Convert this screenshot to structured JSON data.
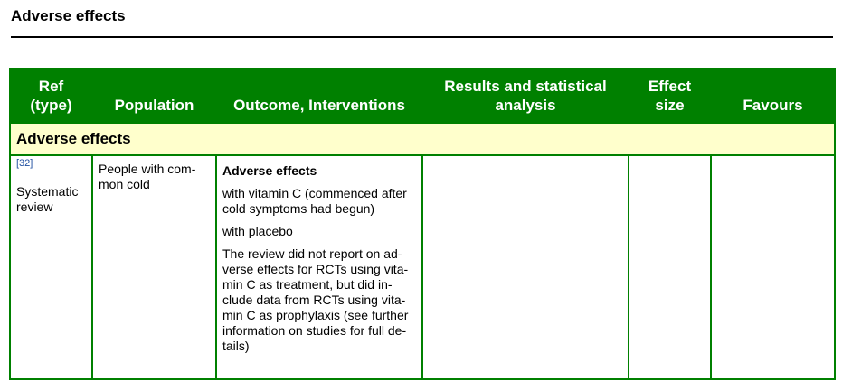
{
  "section": {
    "title": "Adverse effects"
  },
  "table": {
    "headers": [
      "Ref\n(type)",
      "Population",
      "Outcome, Interventions",
      "Results and statistical analysis",
      "Effect\nsize",
      "Favours"
    ],
    "subheading": "Adverse effects",
    "row": {
      "ref": "[32]",
      "type_line1": "Systematic",
      "type_line2": "review",
      "population": "People with com-mon cold",
      "outcome_heading": "Adverse effects",
      "outcome_paragraphs": [
        "with vitamin C (commenced after cold symptoms had begun)",
        "with placebo",
        "The review did not report on ad-verse effects for RCTs using vita-min C as treatment, but did in-clude data from RCTs using vita-min C as prophylaxis (see further information on studies for full de-tails)"
      ],
      "results": "",
      "effect_size": "",
      "favours": ""
    }
  },
  "colors": {
    "header_bg": "#008000",
    "subhead_bg": "#ffffcc",
    "border": "#008000",
    "link": "#1f4fa0"
  }
}
